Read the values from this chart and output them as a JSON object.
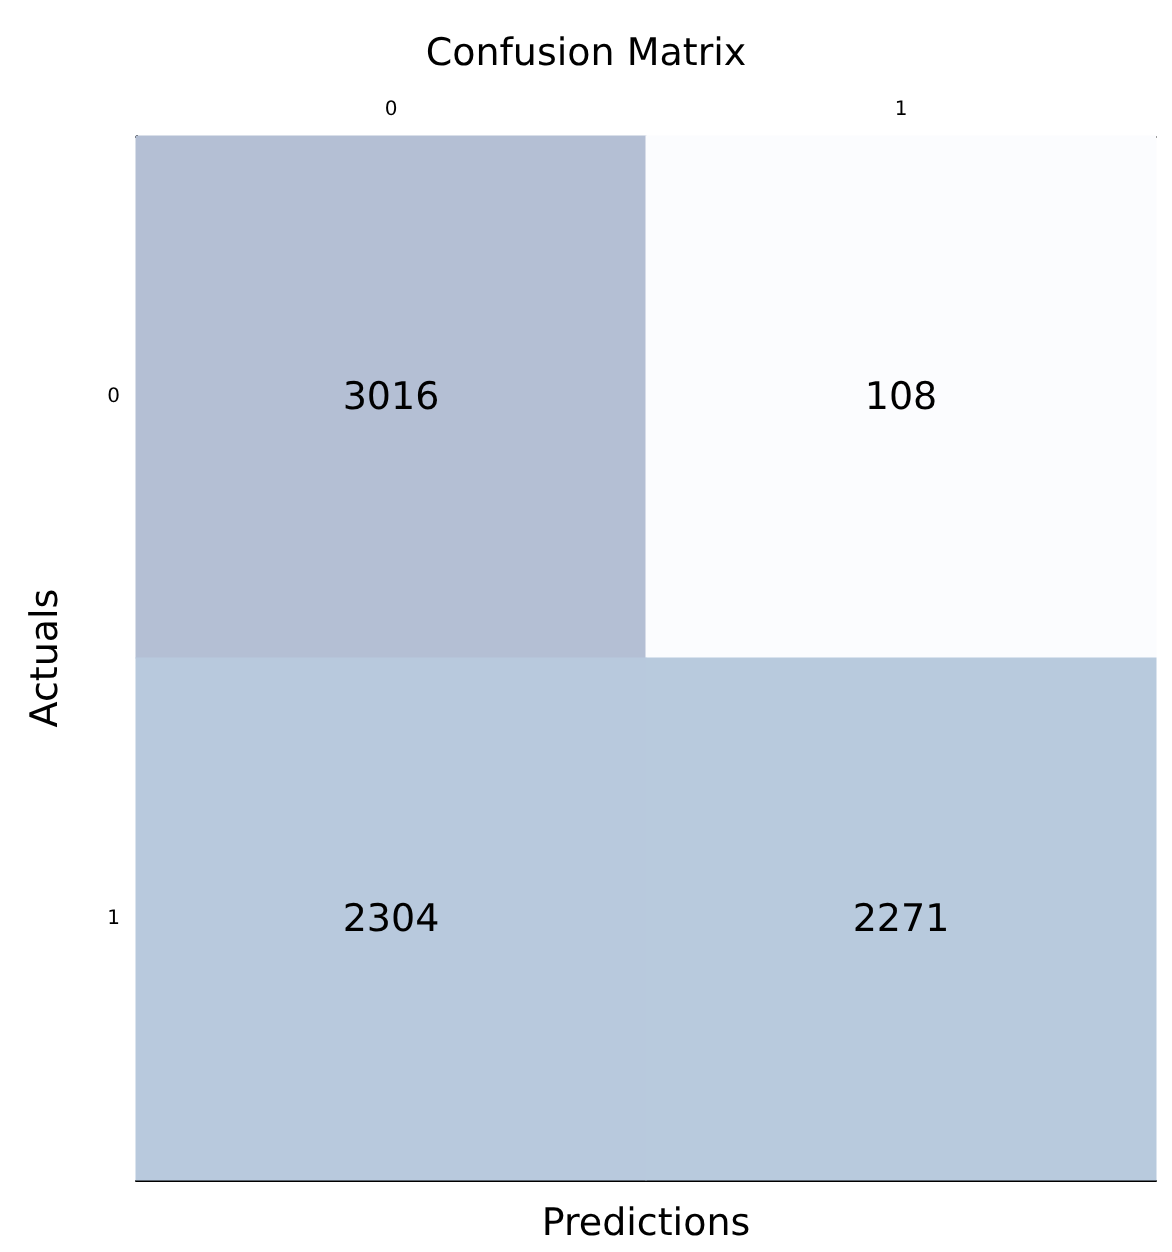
{
  "chart_data": {
    "type": "heatmap",
    "title": "Confusion Matrix",
    "xlabel": "Predictions",
    "ylabel": "Actuals",
    "categories": [
      "0",
      "1"
    ],
    "y_categories": [
      "0",
      "1"
    ],
    "cells": [
      [
        3016,
        108
      ],
      [
        2304,
        2271
      ]
    ],
    "colors": [
      "#fbfcfe",
      "#bcd4e6",
      "#b4bfd4"
    ],
    "data_labels": true
  }
}
